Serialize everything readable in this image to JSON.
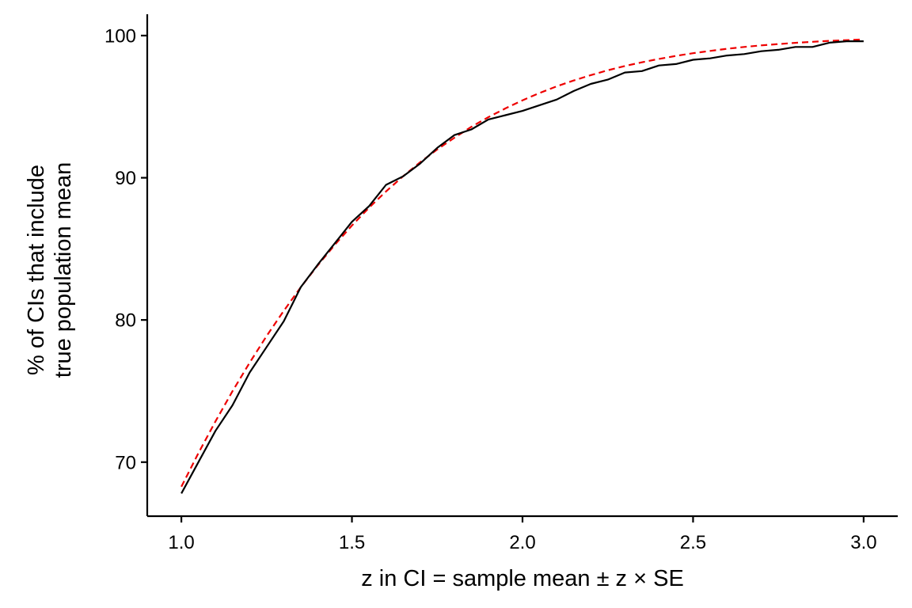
{
  "chart_data": {
    "type": "line",
    "xlabel": "z in CI =  sample mean ± z × SE",
    "ylabel_lines": [
      "% of CIs that include",
      "true population mean"
    ],
    "xlim": [
      0.9,
      3.1
    ],
    "ylim": [
      66.2,
      101.5
    ],
    "x_ticks": [
      1.0,
      1.5,
      2.0,
      2.5,
      3.0
    ],
    "x_tick_labels": [
      "1.0",
      "1.5",
      "2.0",
      "2.5",
      "3.0"
    ],
    "y_ticks": [
      70,
      80,
      90,
      100
    ],
    "y_tick_labels": [
      "70",
      "80",
      "90",
      "100"
    ],
    "grid": false,
    "legend": "none",
    "series": [
      {
        "style": "solid",
        "color": "#000000",
        "x": [
          1.0,
          1.05,
          1.1,
          1.15,
          1.2,
          1.25,
          1.3,
          1.35,
          1.4,
          1.45,
          1.5,
          1.55,
          1.6,
          1.65,
          1.7,
          1.75,
          1.8,
          1.85,
          1.9,
          1.95,
          2.0,
          2.05,
          2.1,
          2.15,
          2.2,
          2.25,
          2.3,
          2.35,
          2.4,
          2.45,
          2.5,
          2.55,
          2.6,
          2.65,
          2.7,
          2.75,
          2.8,
          2.85,
          2.9,
          2.95,
          3.0
        ],
        "y": [
          67.8,
          70.0,
          72.2,
          74.0,
          76.3,
          78.1,
          79.9,
          82.3,
          83.9,
          85.4,
          86.9,
          88.0,
          89.5,
          90.1,
          91.0,
          92.1,
          93.0,
          93.4,
          94.1,
          94.4,
          94.7,
          95.1,
          95.5,
          96.1,
          96.6,
          96.9,
          97.4,
          97.5,
          97.9,
          98.0,
          98.3,
          98.4,
          98.6,
          98.7,
          98.9,
          99.0,
          99.2,
          99.2,
          99.5,
          99.6,
          99.6
        ]
      },
      {
        "style": "dashed",
        "color": "#ee0000",
        "x": [
          1.0,
          1.05,
          1.1,
          1.15,
          1.2,
          1.25,
          1.3,
          1.35,
          1.4,
          1.45,
          1.5,
          1.55,
          1.6,
          1.65,
          1.7,
          1.75,
          1.8,
          1.85,
          1.9,
          1.95,
          2.0,
          2.05,
          2.1,
          2.15,
          2.2,
          2.25,
          2.3,
          2.35,
          2.4,
          2.45,
          2.5,
          2.55,
          2.6,
          2.65,
          2.7,
          2.75,
          2.8,
          2.85,
          2.9,
          2.95,
          3.0
        ],
        "y": [
          68.27,
          70.63,
          72.87,
          74.99,
          76.99,
          78.87,
          80.64,
          82.3,
          83.85,
          85.29,
          86.64,
          87.89,
          89.04,
          90.11,
          91.09,
          91.99,
          92.81,
          93.58,
          94.26,
          94.88,
          95.45,
          95.96,
          96.43,
          96.84,
          97.22,
          97.56,
          97.86,
          98.12,
          98.36,
          98.57,
          98.76,
          98.92,
          99.07,
          99.2,
          99.31,
          99.4,
          99.49,
          99.56,
          99.63,
          99.68,
          99.73
        ]
      }
    ]
  }
}
